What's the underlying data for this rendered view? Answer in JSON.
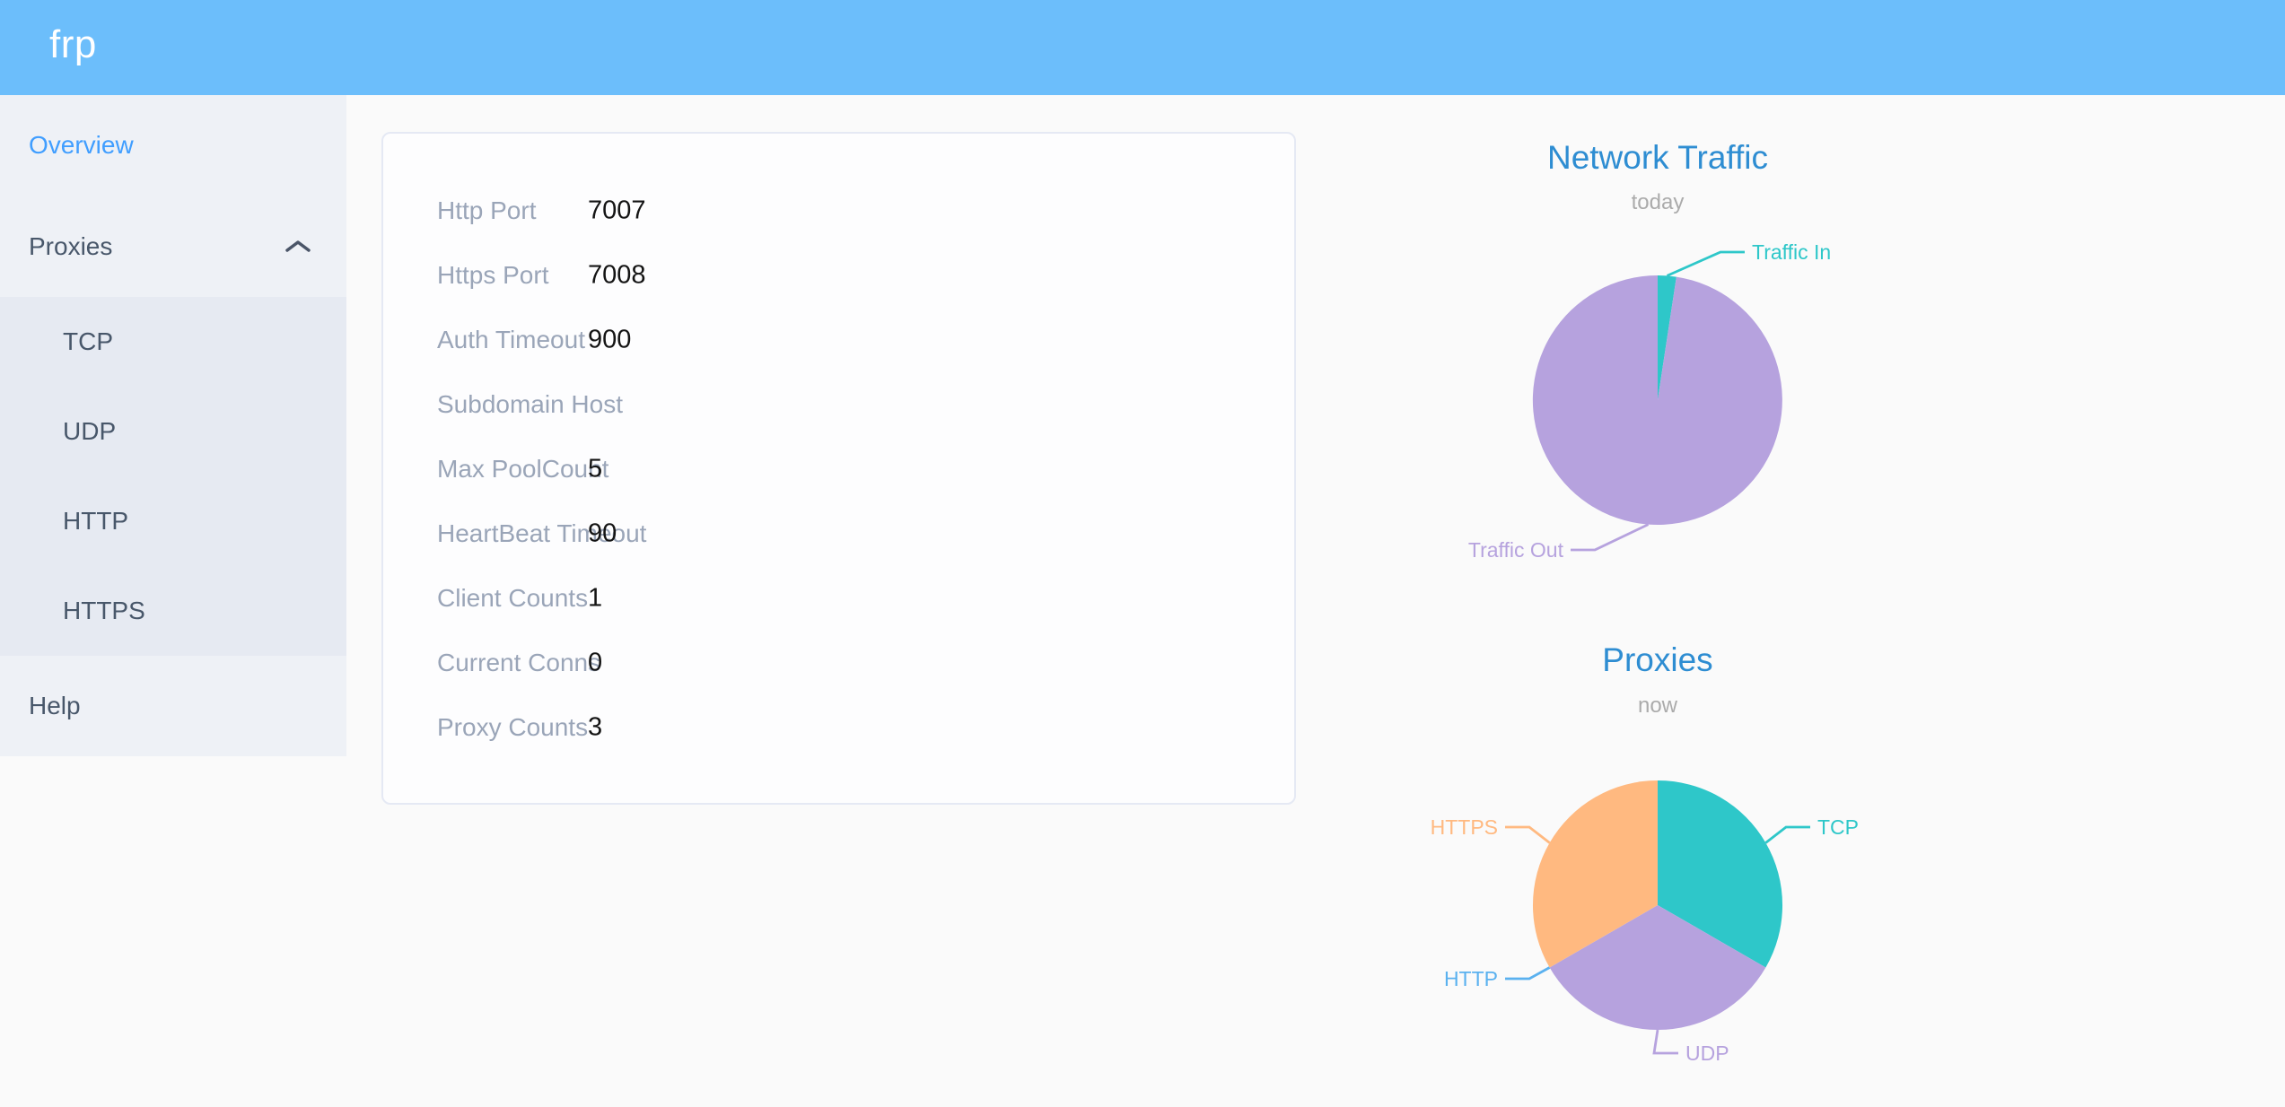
{
  "header": {
    "logo": "frp",
    "background_color": "#6cbefb"
  },
  "sidebar": {
    "active_color": "#409eff",
    "items": [
      {
        "label": "Overview",
        "active": true
      },
      {
        "label": "Proxies",
        "expanded": true,
        "children": [
          "TCP",
          "UDP",
          "HTTP",
          "HTTPS"
        ]
      },
      {
        "label": "Help"
      }
    ]
  },
  "overview_card": {
    "rows": [
      {
        "label": "Http Port",
        "value": "7007"
      },
      {
        "label": "Https Port",
        "value": "7008"
      },
      {
        "label": "Auth Timeout",
        "value": "900"
      },
      {
        "label": "Subdomain Host",
        "value": ""
      },
      {
        "label": "Max PoolCount",
        "value": "5"
      },
      {
        "label": "HeartBeat Timeout",
        "value": "90"
      },
      {
        "label": "Client Counts",
        "value": "1"
      },
      {
        "label": "Current Conns",
        "value": "0"
      },
      {
        "label": "Proxy Counts",
        "value": "3"
      }
    ]
  },
  "chart_data": [
    {
      "type": "pie",
      "title": "Network Traffic",
      "subtitle": "today",
      "title_color": "#2e8dd2",
      "labels": [
        "Traffic In",
        "Traffic Out"
      ],
      "values": [
        2.4,
        97.6
      ],
      "value_note": "percent share estimated from slice arcs; no numbers printed on screen",
      "colors": [
        "#2ec7c9",
        "#b6a2de"
      ],
      "legend": "callout-labels"
    },
    {
      "type": "pie",
      "title": "Proxies",
      "subtitle": "now",
      "title_color": "#2e8dd2",
      "labels": [
        "TCP",
        "UDP",
        "HTTP",
        "HTTPS"
      ],
      "values": [
        1,
        1,
        0,
        1
      ],
      "value_note": "counts inferred from equal thirds; HTTP slice is zero but label shown",
      "colors": [
        "#2ec7c9",
        "#b6a2de",
        "#5ab1ef",
        "#ffb980"
      ],
      "legend": "callout-labels"
    }
  ]
}
